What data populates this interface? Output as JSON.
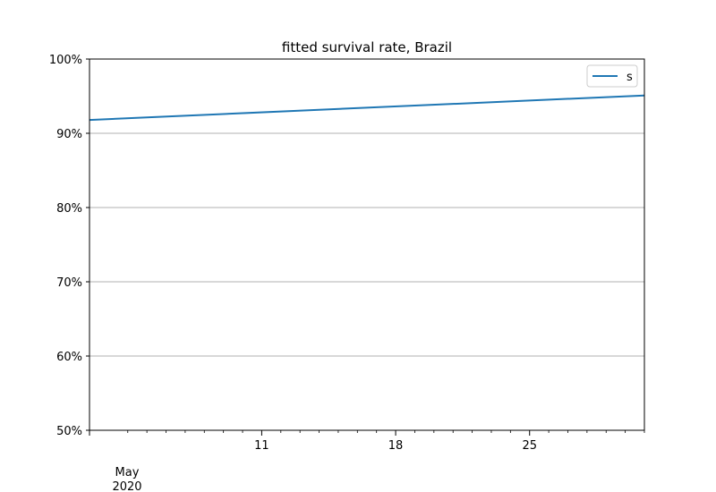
{
  "chart_data": {
    "type": "line",
    "title": "fitted survival rate, Brazil",
    "xlabel": "",
    "ylabel": "",
    "x_range": [
      "2020-05-02",
      "2020-05-31"
    ],
    "ylim": [
      50,
      100
    ],
    "y_ticks": [
      {
        "value": 50,
        "label": "50%"
      },
      {
        "value": 60,
        "label": "60%"
      },
      {
        "value": 70,
        "label": "70%"
      },
      {
        "value": 80,
        "label": "80%"
      },
      {
        "value": 90,
        "label": "90%"
      },
      {
        "value": 100,
        "label": "100%"
      }
    ],
    "x_major_ticks": [
      {
        "date": "2020-05-11",
        "label": "11"
      },
      {
        "date": "2020-05-18",
        "label": "18"
      },
      {
        "date": "2020-05-25",
        "label": "25"
      }
    ],
    "x_minor_ticks": [
      "2020-05-04",
      "2020-05-05",
      "2020-05-06",
      "2020-05-07",
      "2020-05-08",
      "2020-05-09",
      "2020-05-10",
      "2020-05-12",
      "2020-05-13",
      "2020-05-14",
      "2020-05-15",
      "2020-05-16",
      "2020-05-17",
      "2020-05-19",
      "2020-05-20",
      "2020-05-21",
      "2020-05-22",
      "2020-05-23",
      "2020-05-24",
      "2020-05-26",
      "2020-05-27",
      "2020-05-28",
      "2020-05-29",
      "2020-05-30",
      "2020-05-31"
    ],
    "x_period_label": {
      "month": "May",
      "year": "2020"
    },
    "grid": {
      "y": true,
      "x": false
    },
    "legend": {
      "position": "top-right",
      "entries": [
        "s"
      ]
    },
    "series": [
      {
        "name": "s",
        "color": "#1f77b4",
        "points": [
          {
            "x": "2020-05-02",
            "y": 91.8
          },
          {
            "x": "2020-05-31",
            "y": 95.1
          }
        ]
      }
    ]
  }
}
